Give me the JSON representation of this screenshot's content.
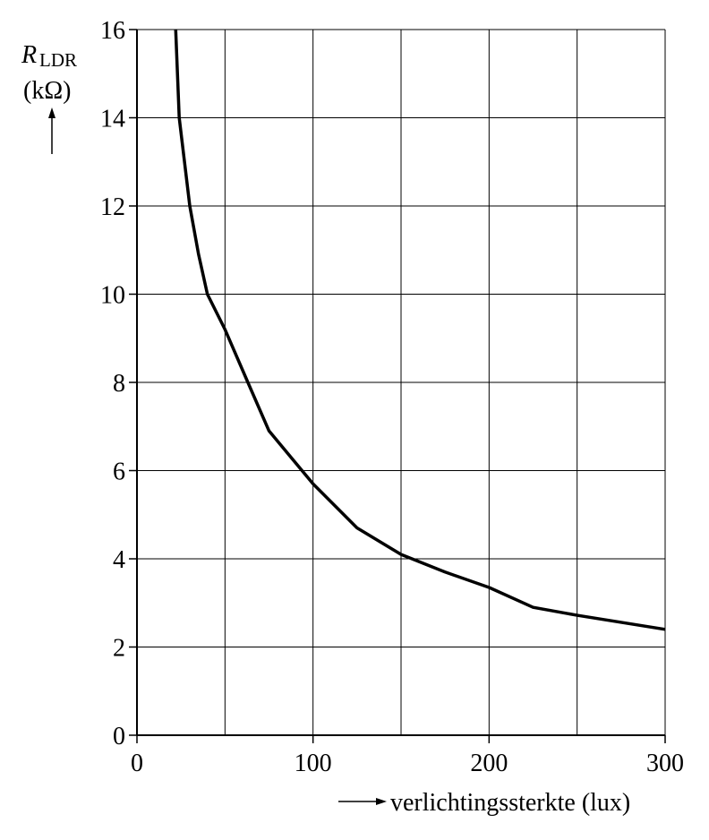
{
  "chart_data": {
    "type": "line",
    "ylabel": {
      "symbol": "R",
      "subscript": "LDR",
      "unit": "(kΩ)"
    },
    "xlabel": "verlichtingssterkte (lux)",
    "xlim": [
      0,
      300
    ],
    "xticks": [
      0,
      100,
      200,
      300
    ],
    "x_minor_grid": [
      50,
      150,
      250
    ],
    "ylim": [
      0,
      16
    ],
    "yticks": [
      0,
      2,
      4,
      6,
      8,
      10,
      12,
      14,
      16
    ],
    "grid": true,
    "color": "#000000",
    "x": [
      22,
      24,
      30,
      35,
      40,
      50,
      63,
      75,
      100,
      125,
      150,
      175,
      200,
      225,
      250,
      300
    ],
    "values": [
      16,
      14,
      12,
      10.9,
      10,
      9.2,
      8,
      6.9,
      5.7,
      4.7,
      4.1,
      3.7,
      3.35,
      2.9,
      2.72,
      2.4
    ]
  }
}
